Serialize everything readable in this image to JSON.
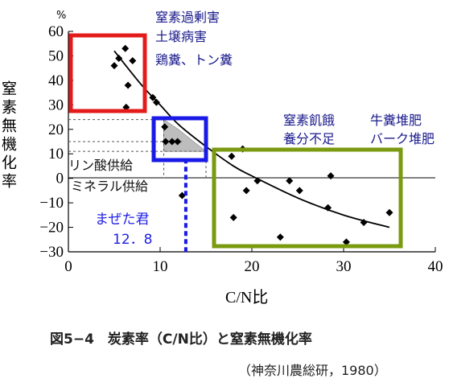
{
  "chart_data": {
    "type": "scatter",
    "title": "",
    "xlabel": "C/N比",
    "ylabel": "窒素無機化率",
    "y_unit": "%",
    "xlim": [
      0,
      40
    ],
    "ylim": [
      -30,
      60
    ],
    "x_ticks": [
      0,
      10,
      20,
      30,
      40
    ],
    "y_ticks": [
      -30,
      -20,
      -10,
      0,
      10,
      20,
      30,
      40,
      50,
      60
    ],
    "x_tick_labels": [
      "0",
      "10",
      "20",
      "30",
      "40"
    ],
    "y_tick_labels": [
      "−30",
      "−20",
      "−10",
      "0",
      "10",
      "20",
      "30",
      "40",
      "50",
      "60"
    ],
    "grid": false,
    "points": [
      {
        "x": 5.0,
        "y": 46
      },
      {
        "x": 5.5,
        "y": 49
      },
      {
        "x": 6.2,
        "y": 53
      },
      {
        "x": 6.5,
        "y": 38
      },
      {
        "x": 6.3,
        "y": 29
      },
      {
        "x": 7.0,
        "y": 48
      },
      {
        "x": 9.2,
        "y": 33
      },
      {
        "x": 9.6,
        "y": 31
      },
      {
        "x": 10.5,
        "y": 21
      },
      {
        "x": 10.6,
        "y": 15
      },
      {
        "x": 11.3,
        "y": 15
      },
      {
        "x": 11.9,
        "y": 15
      },
      {
        "x": 12.4,
        "y": -7
      },
      {
        "x": 17.8,
        "y": 9
      },
      {
        "x": 19.0,
        "y": 12
      },
      {
        "x": 18.0,
        "y": -16
      },
      {
        "x": 19.4,
        "y": -5
      },
      {
        "x": 20.6,
        "y": -1
      },
      {
        "x": 23.1,
        "y": -24
      },
      {
        "x": 24.1,
        "y": -1
      },
      {
        "x": 25.2,
        "y": -5
      },
      {
        "x": 28.3,
        "y": -12
      },
      {
        "x": 28.6,
        "y": 1
      },
      {
        "x": 30.3,
        "y": -26
      },
      {
        "x": 32.2,
        "y": -18
      },
      {
        "x": 35.0,
        "y": -14
      }
    ],
    "fit_curve": {
      "shape": "exponential decay",
      "points": [
        [
          5,
          52
        ],
        [
          8,
          38
        ],
        [
          10,
          30
        ],
        [
          12,
          22
        ],
        [
          15,
          13
        ],
        [
          18,
          5
        ],
        [
          20,
          1
        ],
        [
          25,
          -8
        ],
        [
          30,
          -15
        ],
        [
          35,
          -20
        ]
      ]
    },
    "annotations": {
      "excess_label_1": "窒素過剰害",
      "excess_label_2": "土壌病害",
      "excess_materials": "鶏糞、トン糞",
      "starvation_label_1": "窒素飢餓",
      "starvation_label_2": "養分不足",
      "starvation_materials_1": "牛糞堆肥",
      "starvation_materials_2": "バーク堆肥",
      "phosphate_label": "リン酸供給",
      "mineral_label": "ミネラル供給",
      "product_name": "まぜた君",
      "product_value": "12．8",
      "product_cn": 12.8
    },
    "colors": {
      "red_box": "#e31b1b",
      "blue_box": "#1a1ae6",
      "green_box": "#7a9a10",
      "navy_text": "#1a1a8c",
      "blue_text": "#1e1ee6",
      "shade": "#bdbdbd"
    }
  },
  "caption": "図5−4　炭素率（C/N比）と窒素無機化率",
  "source": "（神奈川農総研，1980）"
}
